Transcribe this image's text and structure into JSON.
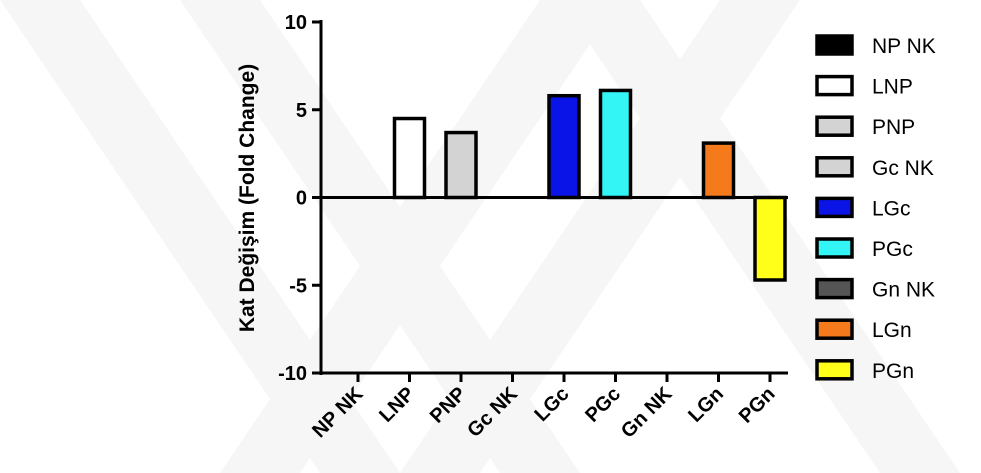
{
  "chart_data": {
    "type": "bar",
    "title": "",
    "xlabel": "",
    "ylabel": "Kat Değişim (Fold Change)",
    "ylim": [
      -10,
      10
    ],
    "yticks": [
      10,
      5,
      0,
      -5,
      -10
    ],
    "ytick_labels": [
      "10",
      "5",
      "0",
      "-5",
      "-10"
    ],
    "categories": [
      "NP NK",
      "LNP",
      "PNP",
      "Gc NK",
      "LGc",
      "PGc",
      "Gn NK",
      "LGn",
      "PGn"
    ],
    "values": [
      0,
      4.5,
      3.7,
      0,
      5.8,
      6.1,
      0,
      3.1,
      -4.7
    ],
    "colors": [
      "#000000",
      "#ffffff",
      "#d3d3d3",
      "#d3d3d3",
      "#0a14e6",
      "#33f5f5",
      "#555555",
      "#f57a1c",
      "#ffff1a"
    ],
    "grid": false,
    "legend": {
      "position": "right",
      "entries": [
        "NP NK",
        "LNP",
        "PNP",
        "Gc NK",
        "LGc",
        "PGc",
        "Gn NK",
        "LGn",
        "PGn"
      ]
    }
  }
}
